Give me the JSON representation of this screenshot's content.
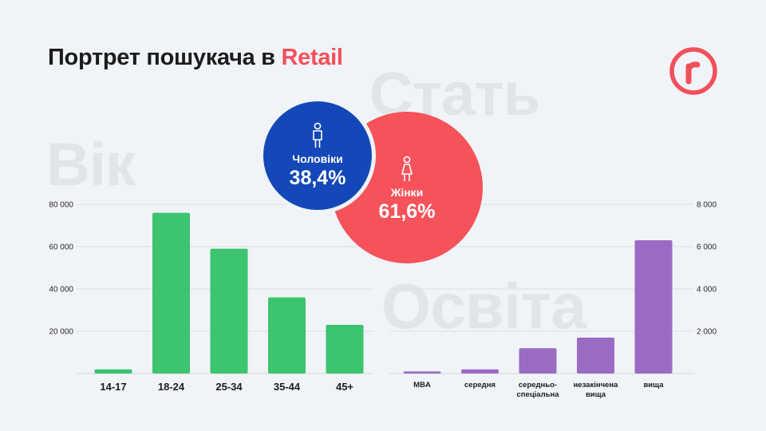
{
  "title": {
    "main": "Портрет пошукача в",
    "accent": "Retail"
  },
  "watermarks": {
    "age": "Вік",
    "gender": "Стать",
    "education": "Освіта"
  },
  "logo": {
    "icon": "r-logo-icon",
    "color": "#f2505a"
  },
  "gender": {
    "men": {
      "label": "Чоловіки",
      "value": "38,4%",
      "icon": "male-icon",
      "color": "#1448b8"
    },
    "women": {
      "label": "Жінки",
      "value": "61,6%",
      "icon": "female-icon",
      "color": "#f5525a"
    }
  },
  "chart_data": [
    {
      "type": "bar",
      "name_hint": "age",
      "categories": [
        "14-17",
        "18-24",
        "25-34",
        "35-44",
        "45+"
      ],
      "values": [
        2000,
        76000,
        59000,
        36000,
        23000
      ],
      "ylim": [
        0,
        80000
      ],
      "yticks": [
        20000,
        40000,
        60000,
        80000
      ],
      "ytick_labels": [
        "20 000",
        "40 000",
        "60 000",
        "80 000"
      ],
      "axis_side": "left",
      "color": "#3cc46e"
    },
    {
      "type": "bar",
      "name_hint": "education",
      "categories": [
        "MBA",
        "середня",
        "середньо-спеціальна",
        "незакінчена вища",
        "вища"
      ],
      "category_lines": [
        [
          "MBA"
        ],
        [
          "середня"
        ],
        [
          "середньо-",
          "спеціальна"
        ],
        [
          "незакінчена",
          "вища"
        ],
        [
          "вища"
        ]
      ],
      "values": [
        100,
        200,
        1200,
        1700,
        6300
      ],
      "ylim": [
        0,
        8000
      ],
      "yticks": [
        2000,
        4000,
        6000,
        8000
      ],
      "ytick_labels": [
        "2 000",
        "4 000",
        "6 000",
        "8 000"
      ],
      "axis_side": "right",
      "color": "#9b6bc4"
    }
  ]
}
